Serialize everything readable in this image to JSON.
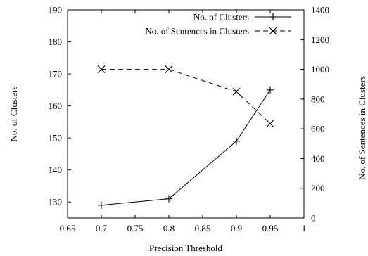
{
  "chart_data": {
    "type": "line",
    "xlabel": "Precision Threshold",
    "ylabel_left": "No. of Clusters",
    "ylabel_right": "No. of Sentences in Clusters",
    "xlim": [
      0.65,
      1.0
    ],
    "ylim_left": [
      125,
      190
    ],
    "ylim_right": [
      0,
      1400
    ],
    "x_ticks": [
      "0.65",
      "0.7",
      "0.75",
      "0.8",
      "0.85",
      "0.9",
      "0.95",
      "1"
    ],
    "y_left_ticks": [
      "130",
      "140",
      "150",
      "160",
      "170",
      "180",
      "190"
    ],
    "y_right_ticks": [
      "0",
      "200",
      "400",
      "600",
      "800",
      "1000",
      "1200",
      "1400"
    ],
    "legend_position": "top-right",
    "grid": false,
    "series": [
      {
        "name": "No. of Clusters",
        "axis": "left",
        "marker": "plus",
        "line_style": "solid",
        "color": "#000000",
        "x": [
          0.7,
          0.8,
          0.9,
          0.95
        ],
        "y": [
          129,
          131,
          149,
          165
        ]
      },
      {
        "name": "No. of Sentences in Clusters",
        "axis": "right",
        "marker": "cross",
        "line_style": "dashed",
        "color": "#000000",
        "x": [
          0.7,
          0.8,
          0.9,
          0.95
        ],
        "y": [
          1000,
          1000,
          850,
          635
        ]
      }
    ]
  }
}
